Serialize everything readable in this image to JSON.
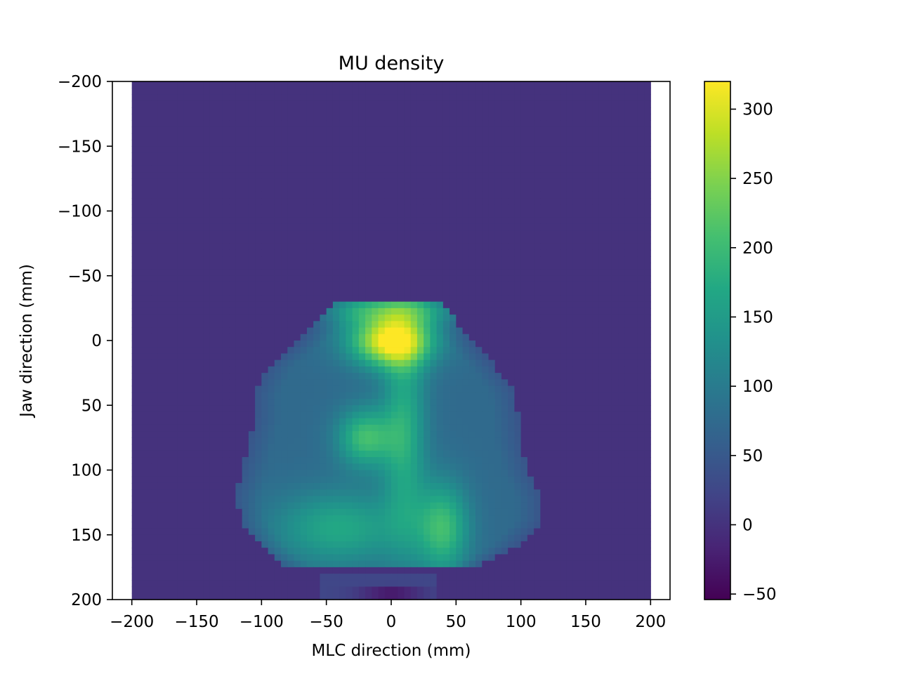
{
  "chart_data": {
    "type": "heatmap",
    "title": "MU density",
    "xlabel": "MLC direction (mm)",
    "ylabel": "Jaw direction (mm)",
    "xlim": [
      -215,
      215
    ],
    "ylim": [
      200,
      -200
    ],
    "x_ticks": [
      -200,
      -150,
      -100,
      -50,
      0,
      50,
      100,
      150,
      200
    ],
    "x_tick_labels": [
      "−200",
      "−150",
      "−100",
      "−50",
      "0",
      "50",
      "100",
      "150",
      "200"
    ],
    "y_ticks": [
      -200,
      -150,
      -100,
      -50,
      0,
      50,
      100,
      150,
      200
    ],
    "y_tick_labels": [
      "−200",
      "−150",
      "−100",
      "−50",
      "0",
      "50",
      "100",
      "150",
      "200"
    ],
    "data_extent": {
      "x": [
        -200,
        200
      ],
      "y": [
        -200,
        200
      ]
    },
    "colormap": "viridis",
    "colorbar": {
      "min": -54,
      "max": 320,
      "ticks": [
        -50,
        0,
        50,
        100,
        150,
        200,
        250,
        300
      ],
      "tick_labels": [
        "−50",
        "0",
        "50",
        "100",
        "150",
        "200",
        "250",
        "300"
      ]
    },
    "background_value": 0,
    "field_shape": {
      "description_rows": "jaw position (mm) with left and right field edges (mm) of the irradiated region",
      "rows": [
        {
          "y": -30,
          "left": -45,
          "right": 40
        },
        {
          "y": -20,
          "left": -50,
          "right": 47
        },
        {
          "y": 0,
          "left": -70,
          "right": 60
        },
        {
          "y": 20,
          "left": -95,
          "right": 80
        },
        {
          "y": 40,
          "left": -105,
          "right": 95
        },
        {
          "y": 60,
          "left": -105,
          "right": 98
        },
        {
          "y": 80,
          "left": -110,
          "right": 100
        },
        {
          "y": 100,
          "left": -115,
          "right": 105
        },
        {
          "y": 120,
          "left": -120,
          "right": 115
        },
        {
          "y": 140,
          "left": -115,
          "right": 115
        },
        {
          "y": 160,
          "left": -100,
          "right": 95
        },
        {
          "y": 175,
          "left": -80,
          "right": 65
        }
      ]
    },
    "hotspots": [
      {
        "x": 0,
        "y": 0,
        "sx": 22,
        "sy": 14,
        "value": 320
      },
      {
        "x": -20,
        "y": 75,
        "sx": 15,
        "sy": 16,
        "value": 205
      },
      {
        "x": 40,
        "y": 145,
        "sx": 14,
        "sy": 25,
        "value": 200
      },
      {
        "x": -40,
        "y": 145,
        "sx": 35,
        "sy": 20,
        "value": 170
      },
      {
        "x": 10,
        "y": 70,
        "sx": 12,
        "sy": 60,
        "value": 175
      },
      {
        "x": 0,
        "y": -24,
        "sx": 45,
        "sy": 8,
        "value": 170
      }
    ],
    "field_base_value": 75,
    "bottom_strip": {
      "y": [
        180,
        200
      ],
      "x": [
        -55,
        35
      ],
      "low_value": -50,
      "low_at": {
        "x": 0,
        "y": 195
      }
    }
  }
}
